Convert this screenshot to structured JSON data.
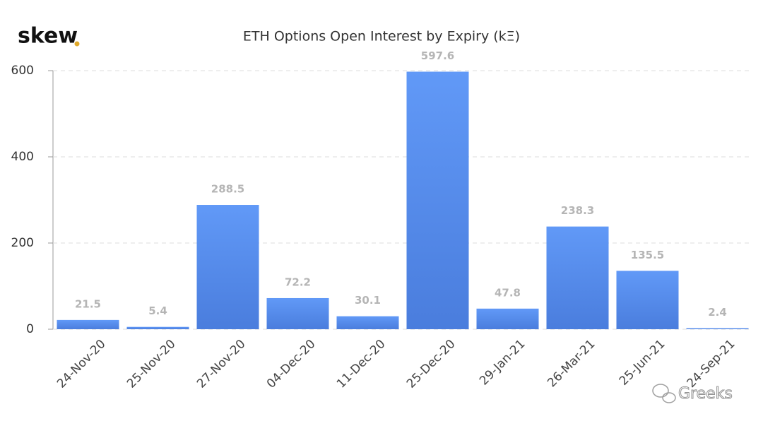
{
  "logo": "skew",
  "watermark": "Greeks",
  "chart_data": {
    "type": "bar",
    "title": "ETH Options Open Interest by Expiry (kΞ)",
    "categories": [
      "24-Nov-20",
      "25-Nov-20",
      "27-Nov-20",
      "04-Dec-20",
      "11-Dec-20",
      "25-Dec-20",
      "29-Jan-21",
      "26-Mar-21",
      "25-Jun-21",
      "24-Sep-21"
    ],
    "values": [
      21.5,
      5.4,
      288.5,
      72.2,
      30.1,
      597.6,
      47.8,
      238.3,
      135.5,
      2.4
    ],
    "color": "#5a8ef0",
    "ylim": [
      0,
      600
    ],
    "yticks": [
      0,
      200,
      400,
      600
    ],
    "grid": true
  }
}
